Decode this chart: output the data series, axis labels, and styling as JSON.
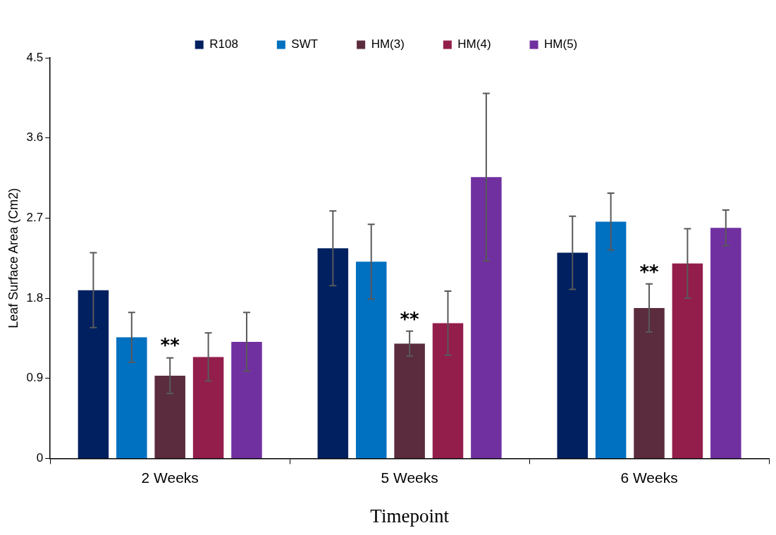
{
  "chart_data": {
    "type": "bar",
    "xlabel": "Timepoint",
    "ylabel": "Leaf Surface Area (Cm2)",
    "categories": [
      "2 Weeks",
      "5 Weeks",
      "6 Weeks"
    ],
    "series": [
      {
        "name": "R108",
        "color": "#002060",
        "values": [
          1.89,
          2.36,
          2.31
        ],
        "errors": [
          0.42,
          0.42,
          0.41
        ]
      },
      {
        "name": "SWT",
        "color": "#0070c0",
        "values": [
          1.36,
          2.21,
          2.66
        ],
        "errors": [
          0.28,
          0.42,
          0.32
        ]
      },
      {
        "name": "HM(3)",
        "color": "#5b2c3e",
        "values": [
          0.93,
          1.29,
          1.69
        ],
        "errors": [
          0.2,
          0.14,
          0.27
        ]
      },
      {
        "name": "HM(4)",
        "color": "#931e4b",
        "values": [
          1.14,
          1.52,
          2.19
        ],
        "errors": [
          0.27,
          0.36,
          0.39
        ]
      },
      {
        "name": "HM(5)",
        "color": "#7030a0",
        "values": [
          1.31,
          3.16,
          2.59
        ],
        "errors": [
          0.33,
          0.94,
          0.2
        ]
      }
    ],
    "ylim": [
      0,
      4.5
    ],
    "yticks": [
      0,
      0.9,
      1.8,
      2.7,
      3.6,
      4.5
    ],
    "grid": false,
    "legend": "top",
    "annotations": [
      "**",
      "**",
      "**"
    ]
  }
}
